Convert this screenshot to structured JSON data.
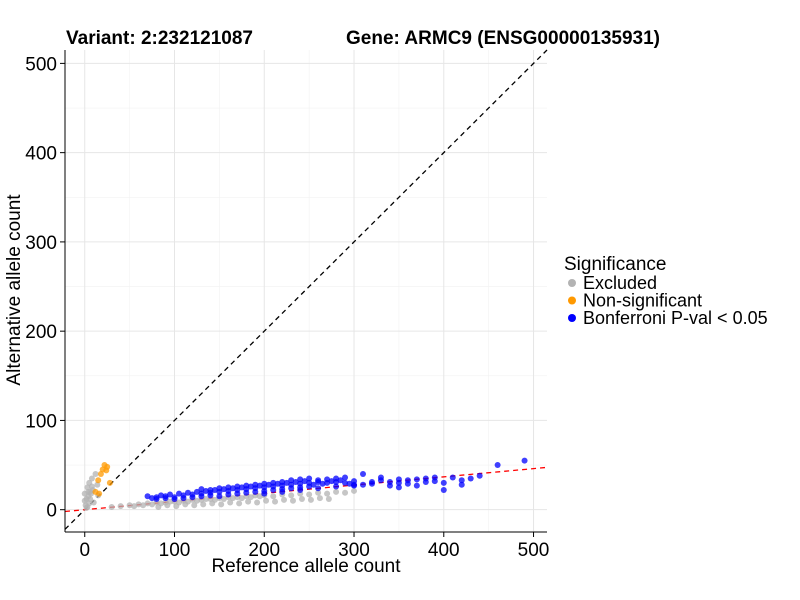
{
  "header": {
    "variant": "Variant: 2:232121087",
    "gene": "Gene: ARMC9 (ENSG00000135931)"
  },
  "chart_data": {
    "type": "scatter",
    "xlabel": "Reference allele count",
    "ylabel": "Alternative allele count",
    "xlim": [
      -22,
      515
    ],
    "ylim": [
      -25,
      515
    ],
    "xticks": [
      0,
      100,
      200,
      300,
      400,
      500
    ],
    "yticks": [
      0,
      100,
      200,
      300,
      400,
      500
    ],
    "grid": true,
    "reference_lines": [
      {
        "name": "identity",
        "slope": 1,
        "intercept": 0,
        "style": "dashed",
        "color": "#000000"
      },
      {
        "name": "fit",
        "slope": 0.092,
        "intercept": 0,
        "style": "dashed",
        "color": "#ff0000"
      }
    ],
    "legend": {
      "title": "Significance",
      "placement": "right",
      "entries": [
        {
          "label": "Excluded",
          "color": "#b3b3b3"
        },
        {
          "label": "Non-significant",
          "color": "#ff9900"
        },
        {
          "label": "Bonferroni P-val < 0.05",
          "color": "#0000ff"
        }
      ]
    },
    "series": [
      {
        "legend_index": 0,
        "color": "#b3b3b3",
        "points": [
          [
            0,
            10
          ],
          [
            2,
            12
          ],
          [
            3,
            25
          ],
          [
            4,
            15
          ],
          [
            5,
            30
          ],
          [
            6,
            20
          ],
          [
            7,
            18
          ],
          [
            8,
            35
          ],
          [
            9,
            22
          ],
          [
            10,
            8
          ],
          [
            12,
            40
          ],
          [
            14,
            28
          ],
          [
            15,
            16
          ],
          [
            1,
            5
          ],
          [
            3,
            3
          ],
          [
            5,
            7
          ],
          [
            2,
            2
          ],
          [
            4,
            20
          ],
          [
            6,
            12
          ],
          [
            8,
            26
          ],
          [
            0,
            18
          ],
          [
            30,
            3
          ],
          [
            40,
            4
          ],
          [
            50,
            5
          ],
          [
            55,
            4
          ],
          [
            60,
            6
          ],
          [
            65,
            5
          ],
          [
            70,
            7
          ],
          [
            75,
            6
          ],
          [
            80,
            8
          ],
          [
            85,
            7
          ],
          [
            90,
            8
          ],
          [
            95,
            9
          ],
          [
            100,
            9
          ],
          [
            105,
            8
          ],
          [
            110,
            10
          ],
          [
            115,
            9
          ],
          [
            120,
            11
          ],
          [
            125,
            10
          ],
          [
            130,
            11
          ],
          [
            135,
            12
          ],
          [
            140,
            12
          ],
          [
            145,
            11
          ],
          [
            150,
            13
          ],
          [
            155,
            12
          ],
          [
            160,
            14
          ],
          [
            165,
            13
          ],
          [
            170,
            14
          ],
          [
            175,
            13
          ],
          [
            180,
            15
          ],
          [
            185,
            14
          ],
          [
            190,
            16
          ],
          [
            195,
            15
          ],
          [
            200,
            16
          ],
          [
            210,
            15
          ],
          [
            220,
            17
          ],
          [
            230,
            16
          ],
          [
            240,
            18
          ],
          [
            250,
            17
          ],
          [
            260,
            19
          ],
          [
            270,
            18
          ],
          [
            280,
            20
          ],
          [
            290,
            19
          ],
          [
            300,
            21
          ],
          [
            82,
            3
          ],
          [
            92,
            5
          ],
          [
            102,
            4
          ],
          [
            112,
            6
          ],
          [
            122,
            5
          ],
          [
            132,
            6
          ],
          [
            142,
            7
          ],
          [
            152,
            6
          ],
          [
            162,
            8
          ],
          [
            172,
            7
          ],
          [
            182,
            9
          ],
          [
            192,
            8
          ],
          [
            202,
            10
          ],
          [
            212,
            9
          ],
          [
            222,
            11
          ],
          [
            232,
            10
          ],
          [
            242,
            12
          ],
          [
            252,
            11
          ],
          [
            262,
            13
          ],
          [
            272,
            12
          ]
        ]
      },
      {
        "legend_index": 1,
        "color": "#ff9900",
        "points": [
          [
            20,
            45
          ],
          [
            22,
            50
          ],
          [
            18,
            40
          ],
          [
            25,
            48
          ],
          [
            28,
            30
          ],
          [
            15,
            33
          ],
          [
            24,
            44
          ],
          [
            12,
            20
          ],
          [
            16,
            18
          ]
        ]
      },
      {
        "legend_index": 2,
        "color": "#0000ff",
        "points": [
          [
            70,
            15
          ],
          [
            75,
            13
          ],
          [
            80,
            14
          ],
          [
            85,
            16
          ],
          [
            90,
            15
          ],
          [
            95,
            17
          ],
          [
            100,
            14
          ],
          [
            105,
            18
          ],
          [
            110,
            16
          ],
          [
            115,
            19
          ],
          [
            120,
            17
          ],
          [
            125,
            20
          ],
          [
            130,
            18
          ],
          [
            135,
            21
          ],
          [
            140,
            19
          ],
          [
            145,
            22
          ],
          [
            150,
            20
          ],
          [
            155,
            23
          ],
          [
            160,
            21
          ],
          [
            165,
            24
          ],
          [
            170,
            22
          ],
          [
            175,
            25
          ],
          [
            180,
            23
          ],
          [
            185,
            26
          ],
          [
            190,
            24
          ],
          [
            195,
            27
          ],
          [
            200,
            25
          ],
          [
            205,
            28
          ],
          [
            210,
            26
          ],
          [
            215,
            29
          ],
          [
            220,
            27
          ],
          [
            225,
            30
          ],
          [
            230,
            28
          ],
          [
            235,
            31
          ],
          [
            240,
            29
          ],
          [
            245,
            32
          ],
          [
            250,
            30
          ],
          [
            255,
            28
          ],
          [
            260,
            31
          ],
          [
            265,
            29
          ],
          [
            270,
            30
          ],
          [
            275,
            32
          ],
          [
            280,
            31
          ],
          [
            285,
            33
          ],
          [
            290,
            30
          ],
          [
            295,
            29
          ],
          [
            300,
            32
          ],
          [
            310,
            28
          ],
          [
            320,
            31
          ],
          [
            330,
            33
          ],
          [
            340,
            27
          ],
          [
            350,
            30
          ],
          [
            360,
            29
          ],
          [
            370,
            34
          ],
          [
            380,
            35
          ],
          [
            390,
            32
          ],
          [
            400,
            30
          ],
          [
            410,
            36
          ],
          [
            420,
            33
          ],
          [
            430,
            35
          ],
          [
            440,
            38
          ],
          [
            400,
            22
          ],
          [
            420,
            28
          ],
          [
            460,
            50
          ],
          [
            490,
            55
          ],
          [
            350,
            25
          ],
          [
            330,
            36
          ],
          [
            310,
            40
          ],
          [
            300,
            27
          ],
          [
            150,
            15
          ],
          [
            160,
            17
          ],
          [
            170,
            18
          ],
          [
            180,
            19
          ],
          [
            190,
            20
          ],
          [
            200,
            21
          ],
          [
            210,
            22
          ],
          [
            220,
            23
          ],
          [
            230,
            24
          ],
          [
            240,
            25
          ],
          [
            250,
            26
          ],
          [
            120,
            14
          ],
          [
            130,
            15
          ],
          [
            140,
            16
          ],
          [
            110,
            13
          ],
          [
            100,
            12
          ],
          [
            90,
            13
          ],
          [
            80,
            12
          ],
          [
            160,
            25
          ],
          [
            170,
            26
          ],
          [
            180,
            27
          ],
          [
            190,
            28
          ],
          [
            200,
            29
          ],
          [
            210,
            30
          ],
          [
            220,
            31
          ],
          [
            230,
            33
          ],
          [
            240,
            34
          ],
          [
            250,
            35
          ],
          [
            260,
            33
          ],
          [
            270,
            34
          ],
          [
            280,
            35
          ],
          [
            290,
            36
          ],
          [
            140,
            22
          ],
          [
            130,
            23
          ],
          [
            150,
            24
          ],
          [
            200,
            18
          ],
          [
            220,
            20
          ],
          [
            240,
            22
          ],
          [
            260,
            24
          ],
          [
            280,
            26
          ],
          [
            300,
            28
          ],
          [
            320,
            29
          ],
          [
            340,
            31
          ],
          [
            360,
            33
          ],
          [
            380,
            31
          ],
          [
            370,
            27
          ],
          [
            390,
            36
          ],
          [
            350,
            34
          ]
        ]
      }
    ]
  }
}
